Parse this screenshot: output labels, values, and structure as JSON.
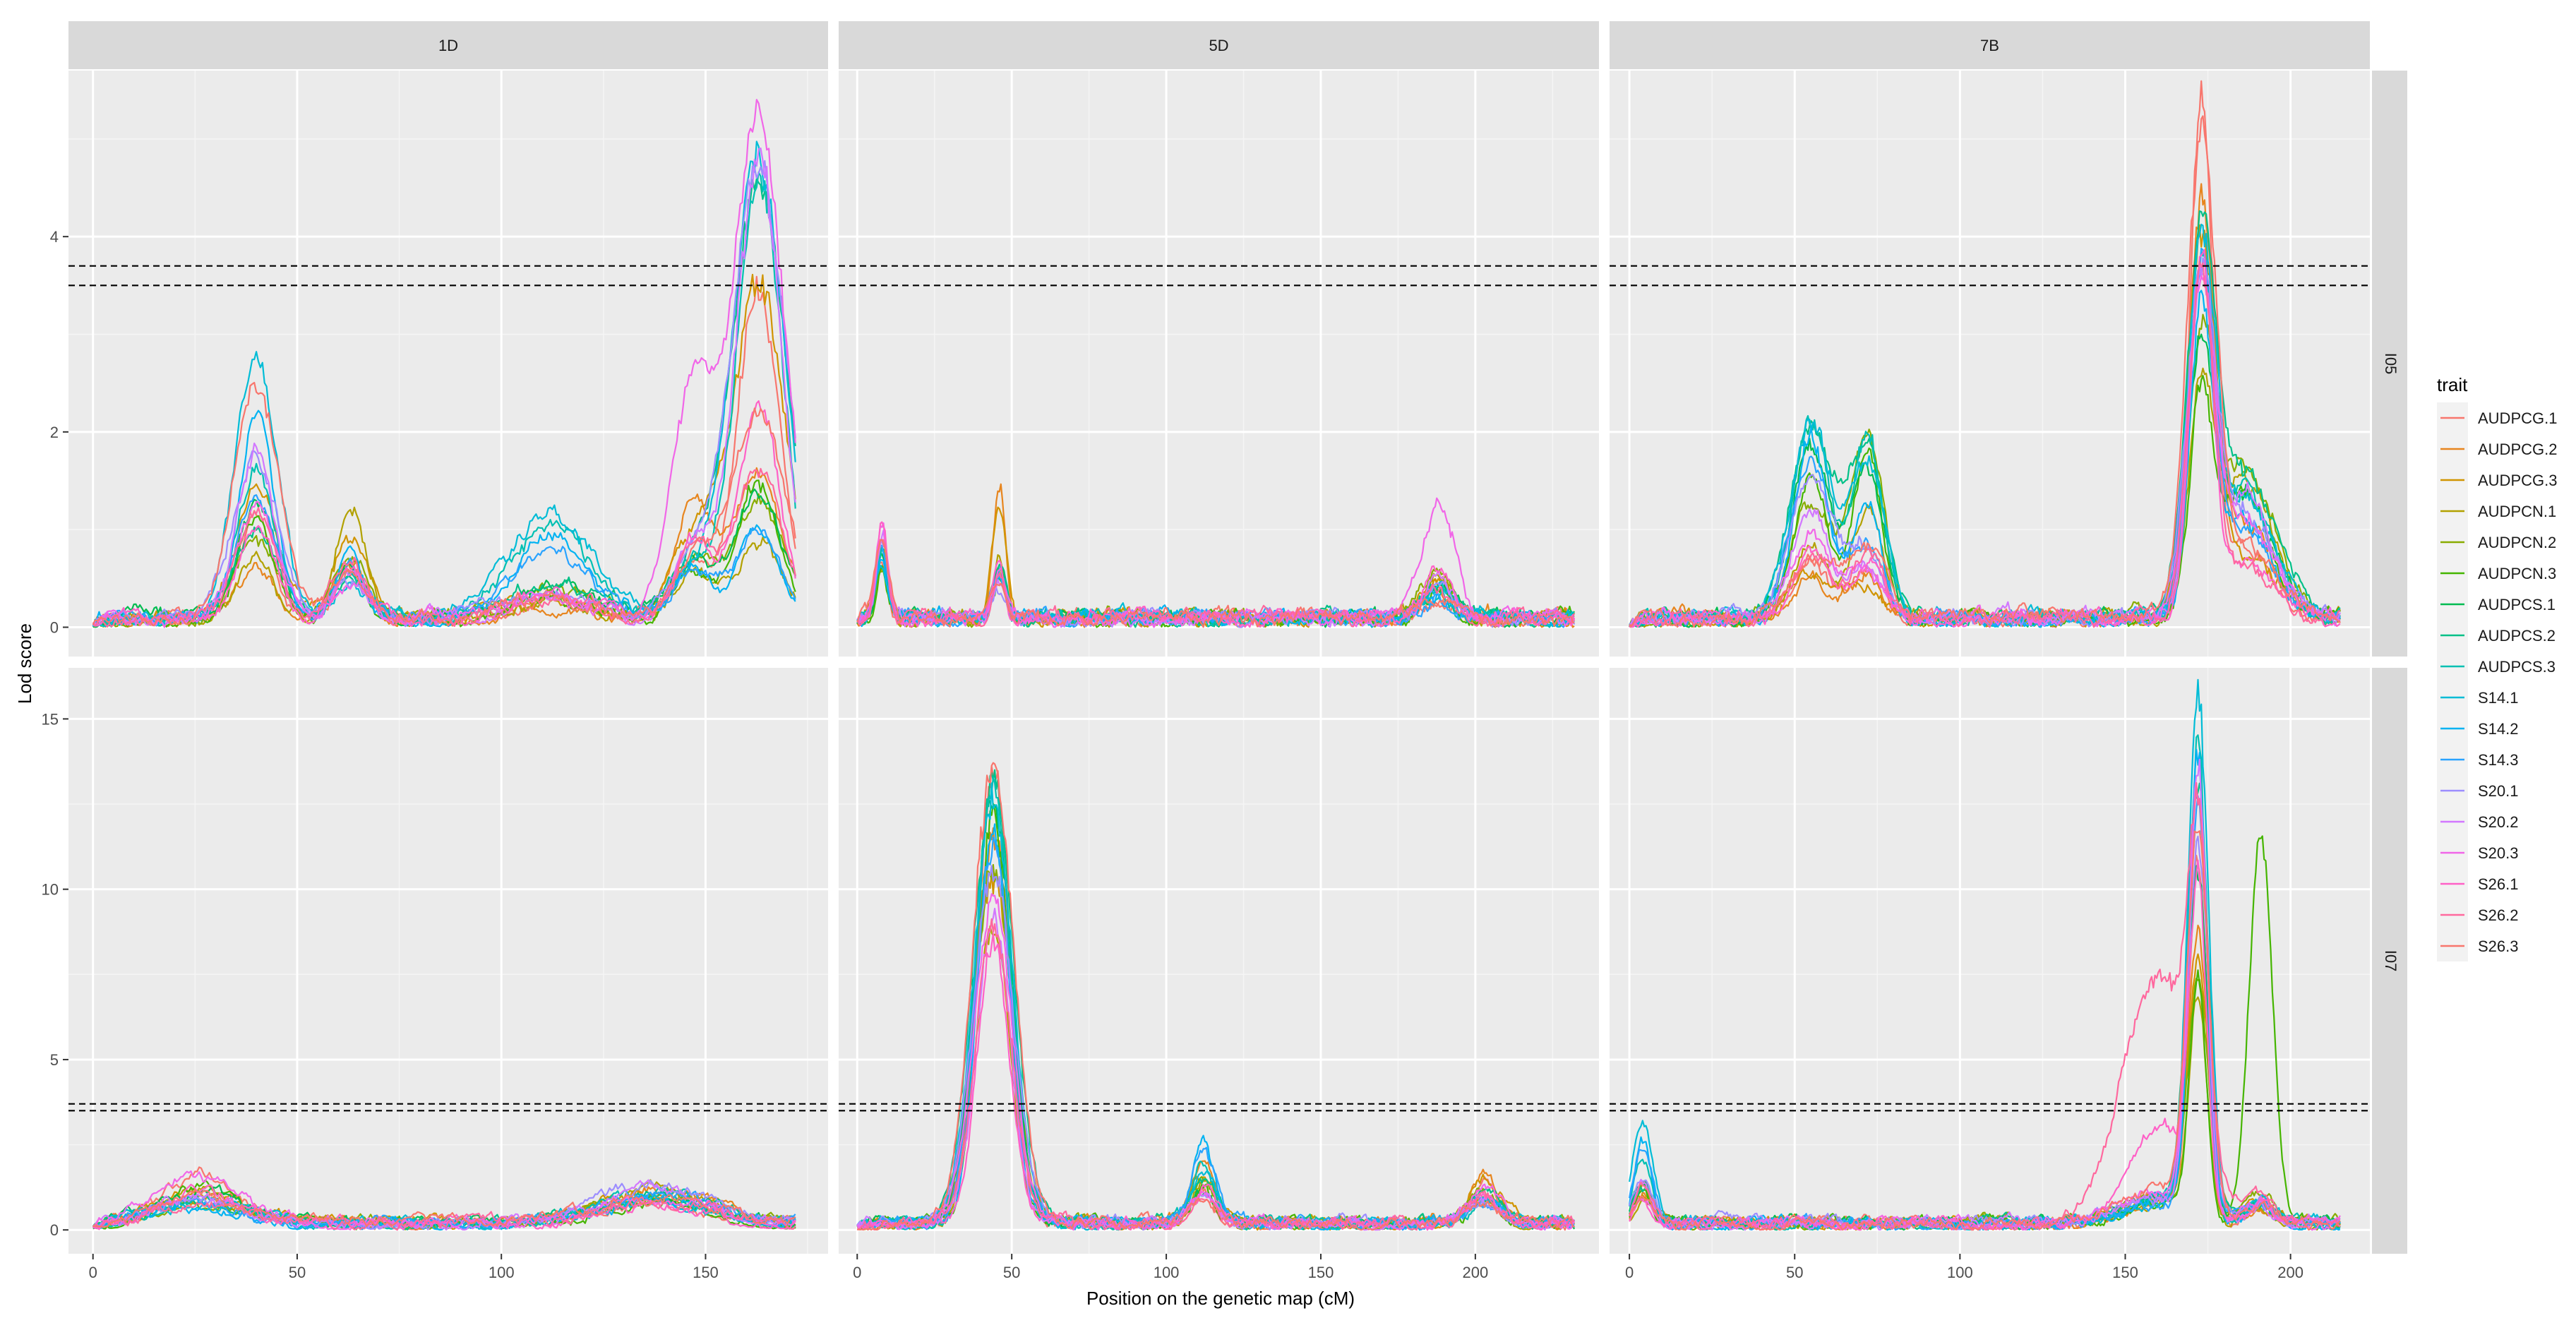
{
  "chart_data": {
    "type": "line",
    "facet_layout": "grid: columns = chromosome, rows = environment",
    "column_strips": [
      "1D",
      "5D",
      "7B"
    ],
    "row_strips": [
      "I05",
      "I07"
    ],
    "xlabel": "Position on the genetic map (cM)",
    "ylabel": "Lod score",
    "column_xlim": [
      [
        -6,
        180
      ],
      [
        -6,
        240
      ],
      [
        -6,
        224
      ]
    ],
    "column_xticks": [
      [
        0,
        50,
        100,
        150
      ],
      [
        0,
        50,
        100,
        150,
        200
      ],
      [
        0,
        50,
        100,
        150,
        200
      ]
    ],
    "row_ylim": [
      [
        -0.3,
        5.7
      ],
      [
        -0.7,
        16.5
      ]
    ],
    "row_yticks": [
      [
        0,
        2,
        4
      ],
      [
        0,
        5,
        10,
        15
      ]
    ],
    "threshold_lines": [
      3.5,
      3.7
    ],
    "grid": true,
    "legend": {
      "title": "trait",
      "placement": "right",
      "entries": [
        "AUDPCG.1",
        "AUDPCG.2",
        "AUDPCG.3",
        "AUDPCN.1",
        "AUDPCN.2",
        "AUDPCN.3",
        "AUDPCS.1",
        "AUDPCS.2",
        "AUDPCS.3",
        "S14.1",
        "S14.2",
        "S14.3",
        "S20.1",
        "S20.2",
        "S20.3",
        "S26.1",
        "S26.2",
        "S26.3"
      ]
    },
    "series_colors": [
      "#F8766D",
      "#E7851E",
      "#D09400",
      "#B2A100",
      "#89AC00",
      "#45B500",
      "#00BC51",
      "#00C087",
      "#00C0B2",
      "#00BCD6",
      "#00B3F2",
      "#29A3FF",
      "#9C8DFF",
      "#D277FF",
      "#F166E8",
      "#FF61C7",
      "#FF689E",
      "#F8766D"
    ],
    "panels": [
      {
        "column": "1D",
        "row": "I05",
        "xmax": 172,
        "peaks": [
          {
            "pos": 40,
            "width": 5,
            "values": [
              1.0,
              0.5,
              1.3,
              0.6,
              0.8,
              1.0,
              1.2,
              0.9,
              1.6,
              2.7,
              2.1,
              1.3,
              1.7,
              1.8,
              1.2,
              1.0,
              1.2,
              2.5
            ]
          },
          {
            "pos": 163,
            "width": 6,
            "values": [
              3.5,
              1.6,
              3.5,
              0.8,
              1.2,
              1.4,
              1.3,
              4.6,
              4.7,
              4.9,
              1.0,
              0.9,
              4.8,
              4.9,
              5.3,
              2.3,
              1.6,
              2.2
            ]
          },
          {
            "pos": 63,
            "width": 4,
            "values": [
              0.5,
              0.6,
              0.8,
              1.2,
              0.7,
              0.6,
              0.5,
              0.4,
              0.5,
              0.4,
              0.7,
              0.5,
              0.4,
              0.5,
              0.4,
              0.5,
              0.6,
              0.5
            ]
          },
          {
            "pos": 112,
            "width": 10,
            "values": [
              0.2,
              0.1,
              0.2,
              0.2,
              0.3,
              0.2,
              0.3,
              0.4,
              1.0,
              1.1,
              0.9,
              0.7,
              0.3,
              0.2,
              0.2,
              0.3,
              0.2,
              0.2
            ]
          },
          {
            "pos": 147,
            "width": 5,
            "values": [
              0.6,
              1.2,
              0.8,
              0.5,
              0.6,
              0.5,
              0.6,
              0.5,
              0.6,
              0.5,
              0.6,
              0.5,
              0.6,
              0.8,
              2.5,
              0.8,
              0.7,
              0.6
            ]
          }
        ]
      },
      {
        "column": "5D",
        "row": "I05",
        "xmax": 232,
        "peaks": [
          {
            "pos": 8,
            "width": 2,
            "values": [
              0.6,
              0.8,
              0.5,
              0.7,
              0.6,
              0.5,
              0.6,
              0.7,
              0.6,
              0.5,
              0.6,
              0.7,
              0.8,
              0.9,
              1.0,
              1.1,
              0.9,
              0.8
            ]
          },
          {
            "pos": 46,
            "width": 2,
            "values": [
              0.5,
              1.4,
              1.2,
              0.6,
              0.5,
              0.4,
              0.5,
              0.6,
              0.4,
              0.5,
              0.4,
              0.5,
              0.3,
              0.4,
              0.5,
              0.6,
              0.5,
              0.4
            ]
          },
          {
            "pos": 188,
            "width": 5,
            "values": [
              0.2,
              0.3,
              0.4,
              0.4,
              0.5,
              0.3,
              0.4,
              0.3,
              0.2,
              0.3,
              0.2,
              0.2,
              0.3,
              0.4,
              1.2,
              0.5,
              0.3,
              0.2
            ]
          }
        ]
      },
      {
        "column": "7B",
        "row": "I05",
        "xmax": 215,
        "peaks": [
          {
            "pos": 55,
            "width": 6,
            "values": [
              0.6,
              0.4,
              0.5,
              0.8,
              1.2,
              1.5,
              1.8,
              2.0,
              2.1,
              2.0,
              1.9,
              1.7,
              1.5,
              1.2,
              0.9,
              0.8,
              0.7,
              0.6
            ]
          },
          {
            "pos": 72,
            "width": 5,
            "values": [
              0.5,
              0.4,
              0.3,
              1.2,
              1.9,
              1.8,
              1.6,
              1.8,
              1.9,
              1.7,
              1.2,
              0.8,
              0.7,
              0.6,
              0.5,
              0.6,
              0.7,
              0.8
            ]
          },
          {
            "pos": 173,
            "width": 4,
            "values": [
              5.4,
              4.1,
              3.9,
              2.3,
              2.5,
              2.2,
              2.6,
              3.6,
              3.4,
              3.7,
              3.2,
              3.5,
              3.3,
              3.4,
              3.3,
              3.8,
              3.5,
              4.9
            ]
          },
          {
            "pos": 186,
            "width": 9,
            "values": [
              0.8,
              1.0,
              0.6,
              1.5,
              1.6,
              1.4,
              1.3,
              1.5,
              1.4,
              1.2,
              1.0,
              0.9,
              1.1,
              1.3,
              1.0,
              0.6,
              0.5,
              0.7
            ]
          }
        ]
      },
      {
        "column": "1D",
        "row": "I07",
        "xmax": 172,
        "peaks": [
          {
            "pos": 26,
            "width": 10,
            "values": [
              1.4,
              0.8,
              0.9,
              1.0,
              0.6,
              1.0,
              0.9,
              0.7,
              0.8,
              0.6,
              0.5,
              0.6,
              0.7,
              0.8,
              1.5,
              1.0,
              0.6,
              0.8
            ]
          },
          {
            "pos": 138,
            "width": 14,
            "values": [
              0.6,
              1.0,
              0.8,
              1.0,
              0.8,
              0.6,
              0.7,
              0.8,
              0.9,
              0.6,
              0.7,
              0.9,
              1.1,
              1.0,
              0.8,
              0.5,
              0.6,
              0.7
            ]
          }
        ]
      },
      {
        "column": "5D",
        "row": "I07",
        "xmax": 232,
        "peaks": [
          {
            "pos": 44,
            "width": 6,
            "values": [
              13.8,
              12.0,
              10.5,
              9.0,
              11.0,
              12.5,
              13.0,
              13.5,
              13.2,
              12.8,
              12.0,
              11.5,
              10.8,
              9.5,
              10.0,
              8.5,
              9.0,
              14.0
            ]
          },
          {
            "pos": 112,
            "width": 4,
            "values": [
              1.0,
              2.0,
              1.5,
              1.2,
              1.4,
              1.1,
              1.0,
              1.2,
              1.8,
              1.5,
              2.5,
              2.2,
              1.0,
              0.9,
              0.8,
              1.0,
              0.9,
              0.7
            ]
          },
          {
            "pos": 203,
            "width": 5,
            "values": [
              1.2,
              1.5,
              1.4,
              0.8,
              1.0,
              0.7,
              0.8,
              1.0,
              0.6,
              0.7,
              0.8,
              0.6,
              0.7,
              0.8,
              1.1,
              0.9,
              0.8,
              0.6
            ]
          }
        ]
      },
      {
        "column": "7B",
        "row": "I07",
        "xmax": 215,
        "peaks": [
          {
            "pos": 4,
            "width": 3,
            "values": [
              1.0,
              0.8,
              0.9,
              0.7,
              1.1,
              1.2,
              1.3,
              1.0,
              2.0,
              3.2,
              2.6,
              2.4,
              1.5,
              1.2,
              0.9,
              0.8,
              1.0,
              0.9
            ]
          },
          {
            "pos": 172,
            "width": 3,
            "values": [
              11.0,
              8.5,
              7.5,
              6.5,
              7.0,
              7.2,
              10.5,
              13.0,
              14.5,
              15.8,
              14.0,
              12.5,
              11.0,
              13.5,
              12.5,
              9.5,
              9.0,
              11.5
            ]
          },
          {
            "pos": 160,
            "width": 11,
            "values": [
              0.8,
              0.6,
              0.7,
              0.6,
              0.7,
              0.5,
              0.6,
              0.7,
              0.8,
              0.6,
              0.7,
              0.6,
              0.7,
              0.8,
              0.9,
              3.0,
              7.5,
              1.0
            ]
          },
          {
            "pos": 191,
            "width": 4,
            "values": [
              0.6,
              0.5,
              0.6,
              0.5,
              0.8,
              12.0,
              0.6,
              0.5,
              0.6,
              0.5,
              0.6,
              0.5,
              0.6,
              0.5,
              0.6,
              0.5,
              0.6,
              0.5
            ]
          }
        ]
      }
    ]
  }
}
